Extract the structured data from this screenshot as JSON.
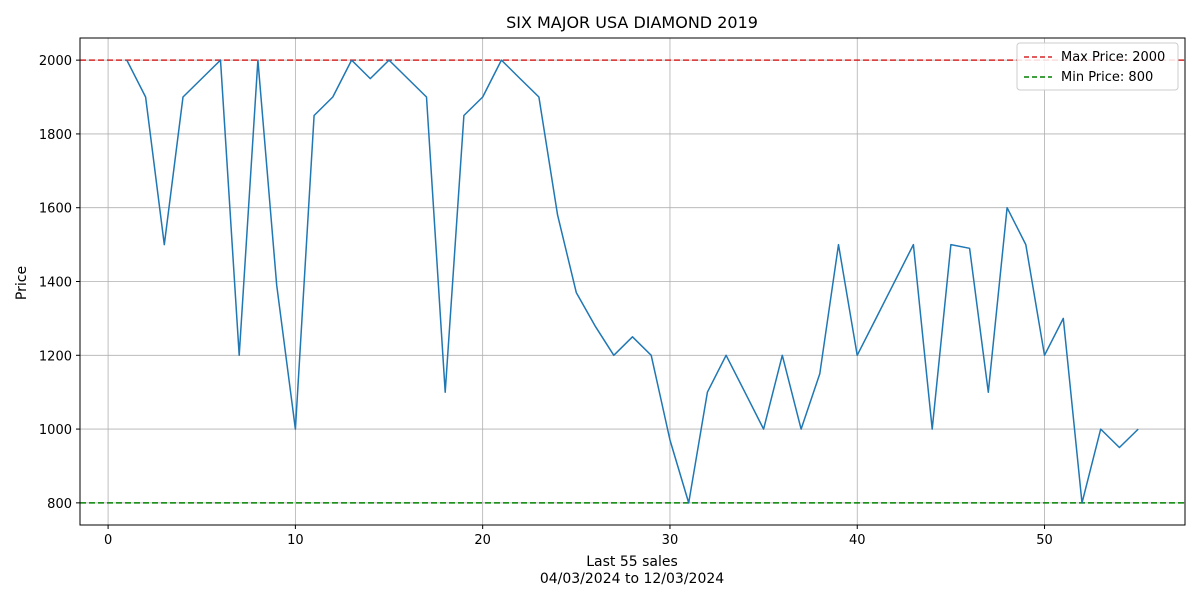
{
  "chart_data": {
    "type": "line",
    "title": "SIX MAJOR USA DIAMOND 2019",
    "xlabel": "Last 55 sales",
    "xlabel_sub": "04/03/2024 to 12/03/2024",
    "ylabel": "Price",
    "xlim": [
      -1.5,
      57.5
    ],
    "ylim": [
      740,
      2060
    ],
    "xticks": [
      0,
      10,
      20,
      30,
      40,
      50
    ],
    "yticks": [
      800,
      1000,
      1200,
      1400,
      1600,
      1800,
      2000
    ],
    "grid": true,
    "legend_position": "top-right",
    "series": [
      {
        "color": "#1f77b4",
        "x": [
          1,
          2,
          3,
          4,
          5,
          6,
          7,
          8,
          9,
          10,
          11,
          12,
          13,
          14,
          15,
          16,
          17,
          18,
          19,
          20,
          21,
          22,
          23,
          24,
          25,
          26,
          27,
          28,
          29,
          30,
          31,
          32,
          33,
          34,
          35,
          36,
          37,
          38,
          39,
          40,
          41,
          42,
          43,
          44,
          45,
          46,
          47,
          48,
          49,
          50,
          51,
          52,
          53,
          54,
          55
        ],
        "values": [
          2000,
          1900,
          1500,
          1900,
          1950,
          2000,
          1200,
          2000,
          1390,
          1000,
          1850,
          1900,
          2000,
          1950,
          2000,
          1950,
          1900,
          1100,
          1850,
          1900,
          2000,
          1950,
          1900,
          1580,
          1370,
          1280,
          1200,
          1250,
          1200,
          970,
          800,
          1100,
          1200,
          1100,
          1000,
          1200,
          1000,
          1150,
          1500,
          1200,
          1300,
          1400,
          1500,
          1000,
          1500,
          1490,
          1100,
          1600,
          1500,
          1200,
          1300,
          800,
          1000,
          950,
          1000
        ]
      }
    ],
    "reference_lines": [
      {
        "name": "Max Price: 2000",
        "value": 2000,
        "color": "#d62728"
      },
      {
        "name": "Min Price: 800",
        "value": 800,
        "color": "#008000"
      }
    ]
  }
}
